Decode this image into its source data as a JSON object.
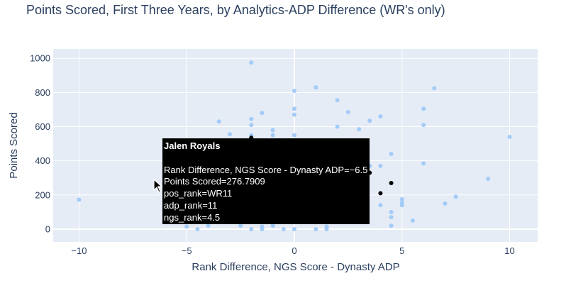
{
  "chart_data": {
    "type": "scatter",
    "title": "Points Scored, First Three Years, by Analytics-ADP Difference (WR's only)",
    "xlabel": "Rank Difference, NGS Score - Dynasty ADP",
    "ylabel": "Points Scored",
    "xlim": [
      -11.2,
      11.3
    ],
    "ylim": [
      -75,
      1055
    ],
    "xticks": [
      -10,
      -5,
      0,
      5,
      10
    ],
    "yticks": [
      0,
      200,
      400,
      600,
      800,
      1000
    ],
    "grid": true,
    "colors": {
      "points": "#a3cbf8",
      "highlight": "#000000",
      "plot_bg": "#e5ecf6",
      "grid": "#ffffff"
    },
    "points": [
      [
        -10,
        172
      ],
      [
        -5,
        15
      ],
      [
        -4.5,
        0
      ],
      [
        -4,
        20
      ],
      [
        -3.5,
        630
      ],
      [
        -3,
        556
      ],
      [
        -2.5,
        20
      ],
      [
        -2.5,
        40
      ],
      [
        -2,
        975
      ],
      [
        -2,
        645
      ],
      [
        -2,
        610
      ],
      [
        -2,
        550
      ],
      [
        -2,
        0
      ],
      [
        -1.5,
        680
      ],
      [
        -1.5,
        15
      ],
      [
        -1.5,
        0
      ],
      [
        -1,
        580
      ],
      [
        -1,
        550
      ],
      [
        -1,
        20
      ],
      [
        -0.5,
        0
      ],
      [
        0,
        810
      ],
      [
        0,
        705
      ],
      [
        0,
        670
      ],
      [
        0,
        550
      ],
      [
        0,
        0
      ],
      [
        1,
        830
      ],
      [
        1,
        0
      ],
      [
        1.5,
        15
      ],
      [
        1.5,
        0
      ],
      [
        2,
        755
      ],
      [
        2,
        600
      ],
      [
        2.5,
        685
      ],
      [
        3,
        585
      ],
      [
        3.5,
        635
      ],
      [
        3.5,
        370
      ],
      [
        4,
        660
      ],
      [
        4,
        370
      ],
      [
        4,
        140
      ],
      [
        4.5,
        440
      ],
      [
        4.5,
        100
      ],
      [
        4.5,
        70
      ],
      [
        4.5,
        20
      ],
      [
        5,
        175
      ],
      [
        5,
        155
      ],
      [
        5,
        140
      ],
      [
        5.5,
        50
      ],
      [
        6,
        705
      ],
      [
        6,
        610
      ],
      [
        6,
        385
      ],
      [
        6.5,
        825
      ],
      [
        7,
        150
      ],
      [
        7.5,
        190
      ],
      [
        9,
        295
      ],
      [
        10,
        540
      ]
    ],
    "highlight_points": [
      [
        -2,
        535
      ],
      [
        3.5,
        330
      ],
      [
        4,
        210
      ],
      [
        4.5,
        270
      ]
    ],
    "hover": {
      "name": "Jalen Royals",
      "x": -6.5,
      "y": 276.7909,
      "lines": [
        "Rank Difference, NGS Score - Dynasty ADP=−6.5",
        "Points Scored=276.7909",
        "pos_rank=WR11",
        "adp_rank=11",
        "ngs_rank=4.5"
      ]
    }
  }
}
